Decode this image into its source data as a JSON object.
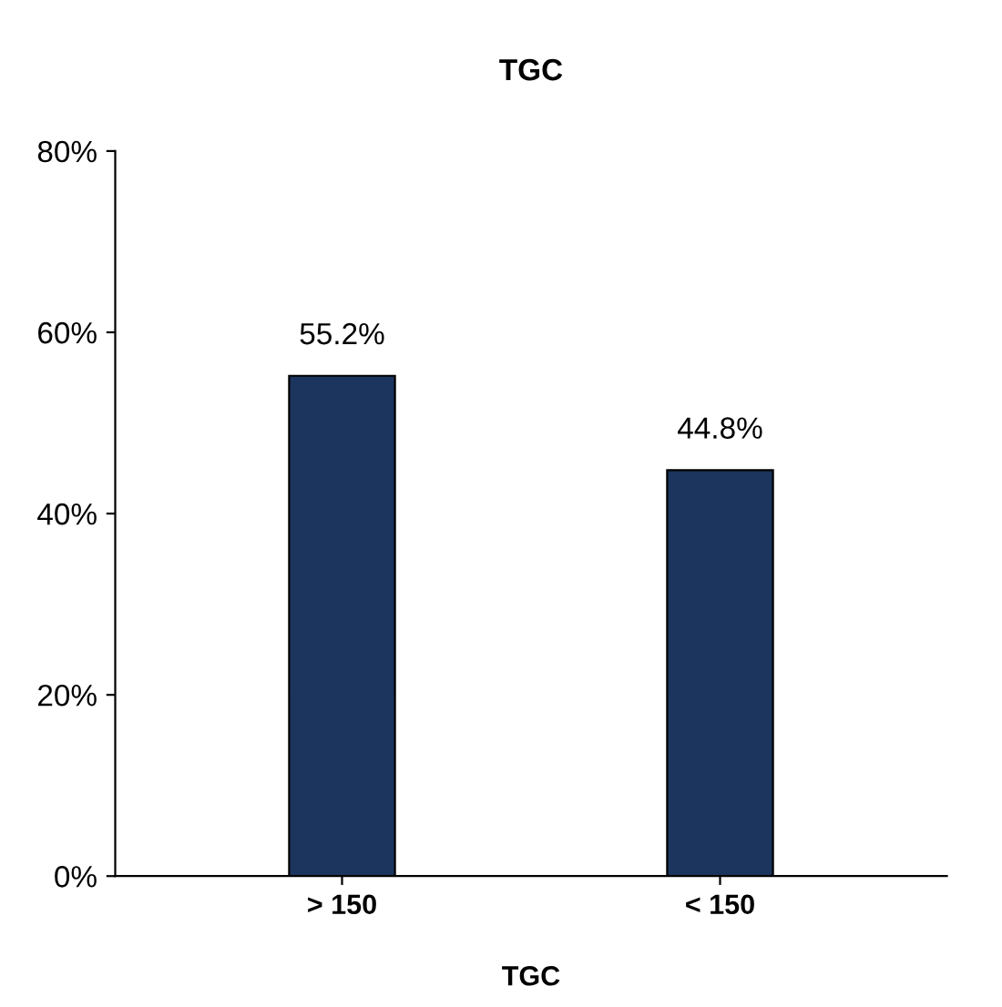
{
  "chart_data": {
    "type": "bar",
    "title": "TGC",
    "xlabel": "TGC",
    "categories": [
      "> 150",
      "< 150"
    ],
    "values": [
      55.2,
      44.8
    ],
    "value_labels": [
      "55.2%",
      "44.8%"
    ],
    "color": "#1c355e",
    "ylim": [
      0,
      80
    ],
    "yticks": [
      {
        "value": 0,
        "label": "0%"
      },
      {
        "value": 20,
        "label": "20%"
      },
      {
        "value": 40,
        "label": "40%"
      },
      {
        "value": 60,
        "label": "60%"
      },
      {
        "value": 80,
        "label": "80%"
      }
    ],
    "grid": false
  }
}
